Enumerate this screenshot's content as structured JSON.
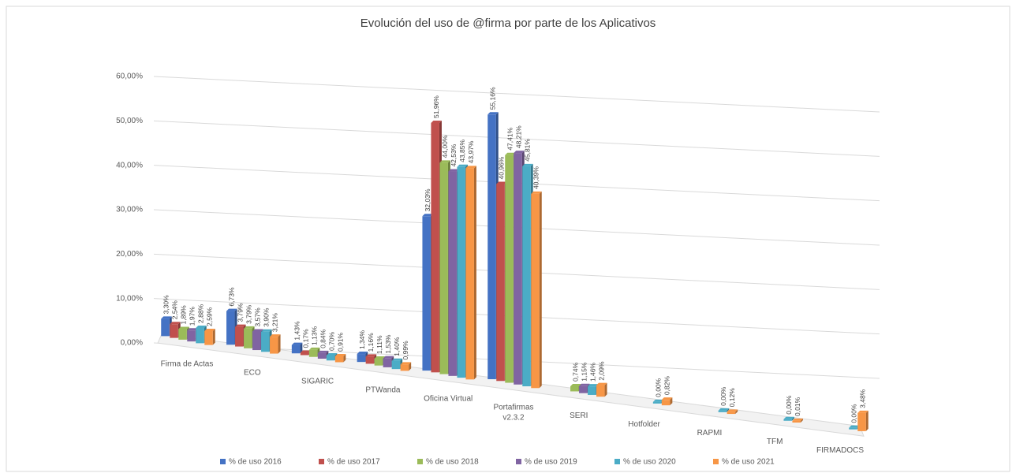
{
  "chart_data": {
    "type": "bar3d",
    "title": "Evolución del uso de @firma por parte de los Aplicativos",
    "categories": [
      "Firma de Actas",
      "ECO",
      "SIGARIC",
      "PTWanda",
      "Oficina Virtual",
      "Portafirmas\nv2.3.2",
      "SERI",
      "Hotfolder",
      "RAPMI",
      "TFM",
      "FIRMADOCS"
    ],
    "series": [
      {
        "name": "% de uso 2016",
        "color": "#4472c4",
        "values": [
          3.3,
          6.73,
          1.43,
          1.34,
          32.03,
          55.16,
          null,
          null,
          null,
          null,
          null
        ],
        "value_labels": [
          "3,30%",
          "6,73%",
          "1,43%",
          "1,34%",
          "32,03%",
          "55,16%",
          null,
          null,
          null,
          null,
          null
        ]
      },
      {
        "name": "% de uso 2017",
        "color": "#c0504d",
        "values": [
          2.54,
          3.79,
          0.17,
          1.16,
          51.96,
          40.96,
          null,
          null,
          null,
          null,
          null
        ],
        "value_labels": [
          "2,54%",
          "3,79%",
          "0,17%",
          "1,16%",
          "51,96%",
          "40,96%",
          null,
          null,
          null,
          null,
          null
        ]
      },
      {
        "name": "% de uso 2018",
        "color": "#9bbb59",
        "values": [
          1.89,
          3.79,
          1.13,
          1.11,
          44.0,
          47.41,
          0.74,
          null,
          null,
          null,
          null
        ],
        "value_labels": [
          "1,89%",
          "3,79%",
          "1,13%",
          "1,11%",
          "44,00%",
          "47,41%",
          "0,74%",
          null,
          null,
          null,
          null
        ]
      },
      {
        "name": "% de uso 2019",
        "color": "#8064a2",
        "values": [
          1.97,
          3.57,
          0.84,
          1.53,
          42.53,
          48.21,
          1.15,
          null,
          null,
          null,
          null
        ],
        "value_labels": [
          "1,97%",
          "3,57%",
          "0,84%",
          "1,53%",
          "42,53%",
          "48,21%",
          "1,15%",
          null,
          null,
          null,
          null
        ]
      },
      {
        "name": "% de uso 2020",
        "color": "#4bacc6",
        "values": [
          2.88,
          3.9,
          0.7,
          1.4,
          43.85,
          45.81,
          1.46,
          0.0,
          0.0,
          0.0,
          0.0
        ],
        "value_labels": [
          "2,88%",
          "3,90%",
          "0,70%",
          "1,40%",
          "43,85%",
          "45,81%",
          "1,46%",
          "0,00%",
          "0,00%",
          "0,00%",
          "0,00%"
        ]
      },
      {
        "name": "% de uso 2021",
        "color": "#f79646",
        "values": [
          2.59,
          3.21,
          0.91,
          0.99,
          43.97,
          40.39,
          2.09,
          0.82,
          0.12,
          0.01,
          3.48
        ],
        "value_labels": [
          "2,59%",
          "3,21%",
          "0,91%",
          "0,99%",
          "43,97%",
          "40,39%",
          "2,09%",
          "0,82%",
          "0,12%",
          "0,01%",
          "3,48%"
        ]
      }
    ],
    "ylim": [
      0,
      60
    ],
    "yticks": [
      {
        "value": 0,
        "label": "0,00%"
      },
      {
        "value": 10,
        "label": "10,00%"
      },
      {
        "value": 20,
        "label": "20,00%"
      },
      {
        "value": 30,
        "label": "30,00%"
      },
      {
        "value": 40,
        "label": "40,00%"
      },
      {
        "value": 50,
        "label": "50,00%"
      },
      {
        "value": 60,
        "label": "60,00%"
      }
    ],
    "grid": true,
    "legend": "bottom"
  }
}
